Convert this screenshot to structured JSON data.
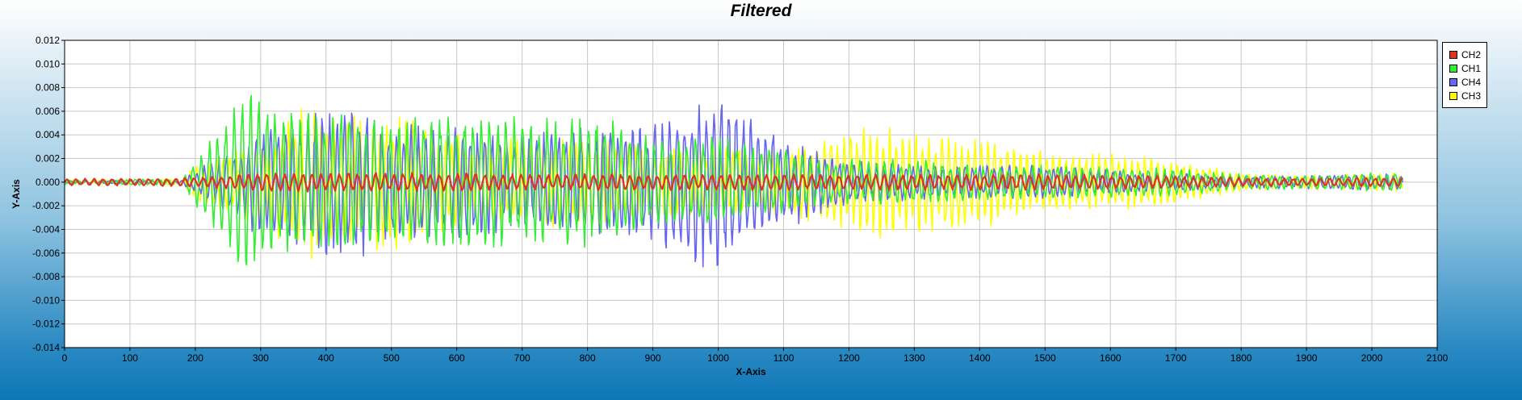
{
  "chart_data": {
    "type": "line",
    "title": "Filtered",
    "xlabel": "X-Axis",
    "ylabel": "Y-Axis",
    "xlim": [
      0,
      2100
    ],
    "ylim": [
      -0.014,
      0.012
    ],
    "x_ticks": [
      "0",
      "100",
      "200",
      "300",
      "400",
      "500",
      "600",
      "700",
      "800",
      "900",
      "1000",
      "1100",
      "1200",
      "1300",
      "1400",
      "1500",
      "1600",
      "1700",
      "1800",
      "1900",
      "2000",
      "2100"
    ],
    "y_ticks": [
      "0.012",
      "0.010",
      "0.008",
      "0.006",
      "0.004",
      "0.002",
      "0.000",
      "-0.002",
      "-0.004",
      "-0.006",
      "-0.008",
      "-0.010",
      "-0.012",
      "-0.014"
    ],
    "grid": true,
    "legend_position": "top-right",
    "x_range": [
      0,
      2048
    ],
    "series": [
      {
        "name": "CH3",
        "color": "#ffff00",
        "envelope": [
          [
            0,
            0.0002
          ],
          [
            100,
            0.0002
          ],
          [
            180,
            0.0003
          ],
          [
            200,
            0.0015
          ],
          [
            260,
            0.003
          ],
          [
            300,
            0.004
          ],
          [
            380,
            0.007
          ],
          [
            460,
            0.006
          ],
          [
            500,
            0.006
          ],
          [
            600,
            0.004
          ],
          [
            700,
            0.004
          ],
          [
            800,
            0.004
          ],
          [
            900,
            0.003
          ],
          [
            1000,
            0.003
          ],
          [
            1100,
            0.003
          ],
          [
            1160,
            0.004
          ],
          [
            1200,
            0.0045
          ],
          [
            1250,
            0.005
          ],
          [
            1300,
            0.0045
          ],
          [
            1400,
            0.004
          ],
          [
            1500,
            0.003
          ],
          [
            1600,
            0.0025
          ],
          [
            1700,
            0.002
          ],
          [
            1800,
            0.0008
          ],
          [
            1900,
            0.0006
          ],
          [
            2000,
            0.0008
          ],
          [
            2048,
            0.0008
          ]
        ]
      },
      {
        "name": "CH4",
        "color": "#6666ee",
        "envelope": [
          [
            0,
            0.0001
          ],
          [
            180,
            0.0002
          ],
          [
            200,
            0.001
          ],
          [
            260,
            0.003
          ],
          [
            300,
            0.005
          ],
          [
            380,
            0.0065
          ],
          [
            460,
            0.0065
          ],
          [
            500,
            0.005
          ],
          [
            600,
            0.005
          ],
          [
            700,
            0.004
          ],
          [
            800,
            0.005
          ],
          [
            900,
            0.005
          ],
          [
            950,
            0.007
          ],
          [
            1000,
            0.008
          ],
          [
            1050,
            0.006
          ],
          [
            1100,
            0.004
          ],
          [
            1150,
            0.003
          ],
          [
            1200,
            0.002
          ],
          [
            1300,
            0.0015
          ],
          [
            1400,
            0.0015
          ],
          [
            1500,
            0.0015
          ],
          [
            1600,
            0.001
          ],
          [
            1700,
            0.0008
          ],
          [
            1800,
            0.0005
          ],
          [
            1900,
            0.0006
          ],
          [
            2000,
            0.0007
          ],
          [
            2048,
            0.0007
          ]
        ]
      },
      {
        "name": "CH1",
        "color": "#33ee33",
        "envelope": [
          [
            0,
            0.0002
          ],
          [
            180,
            0.0003
          ],
          [
            200,
            0.002
          ],
          [
            250,
            0.006
          ],
          [
            285,
            0.009
          ],
          [
            300,
            0.007
          ],
          [
            400,
            0.006
          ],
          [
            500,
            0.0055
          ],
          [
            600,
            0.006
          ],
          [
            700,
            0.0055
          ],
          [
            800,
            0.006
          ],
          [
            850,
            0.005
          ],
          [
            900,
            0.004
          ],
          [
            1000,
            0.004
          ],
          [
            1100,
            0.003
          ],
          [
            1150,
            0.002
          ],
          [
            1200,
            0.002
          ],
          [
            1300,
            0.002
          ],
          [
            1400,
            0.0015
          ],
          [
            1500,
            0.0015
          ],
          [
            1600,
            0.0013
          ],
          [
            1700,
            0.0012
          ],
          [
            1800,
            0.0007
          ],
          [
            1900,
            0.0006
          ],
          [
            2000,
            0.0008
          ],
          [
            2048,
            0.0008
          ]
        ]
      },
      {
        "name": "CH2",
        "color": "#dd3322",
        "envelope": [
          [
            0,
            0.0003
          ],
          [
            100,
            0.0003
          ],
          [
            200,
            0.0004
          ],
          [
            300,
            0.0008
          ],
          [
            400,
            0.0008
          ],
          [
            500,
            0.0008
          ],
          [
            600,
            0.0008
          ],
          [
            700,
            0.0007
          ],
          [
            800,
            0.0007
          ],
          [
            900,
            0.0007
          ],
          [
            1000,
            0.0007
          ],
          [
            1100,
            0.0007
          ],
          [
            1200,
            0.0007
          ],
          [
            1300,
            0.0007
          ],
          [
            1400,
            0.0007
          ],
          [
            1500,
            0.0007
          ],
          [
            1600,
            0.0006
          ],
          [
            1700,
            0.0005
          ],
          [
            1800,
            0.0004
          ],
          [
            1900,
            0.0003
          ],
          [
            2000,
            0.0004
          ],
          [
            2048,
            0.0004
          ]
        ]
      }
    ]
  },
  "legend": {
    "items": [
      {
        "label": "CH2",
        "color": "#dd3322"
      },
      {
        "label": "CH1",
        "color": "#33ee33"
      },
      {
        "label": "CH4",
        "color": "#6666ee"
      },
      {
        "label": "CH3",
        "color": "#ffff00"
      }
    ]
  }
}
